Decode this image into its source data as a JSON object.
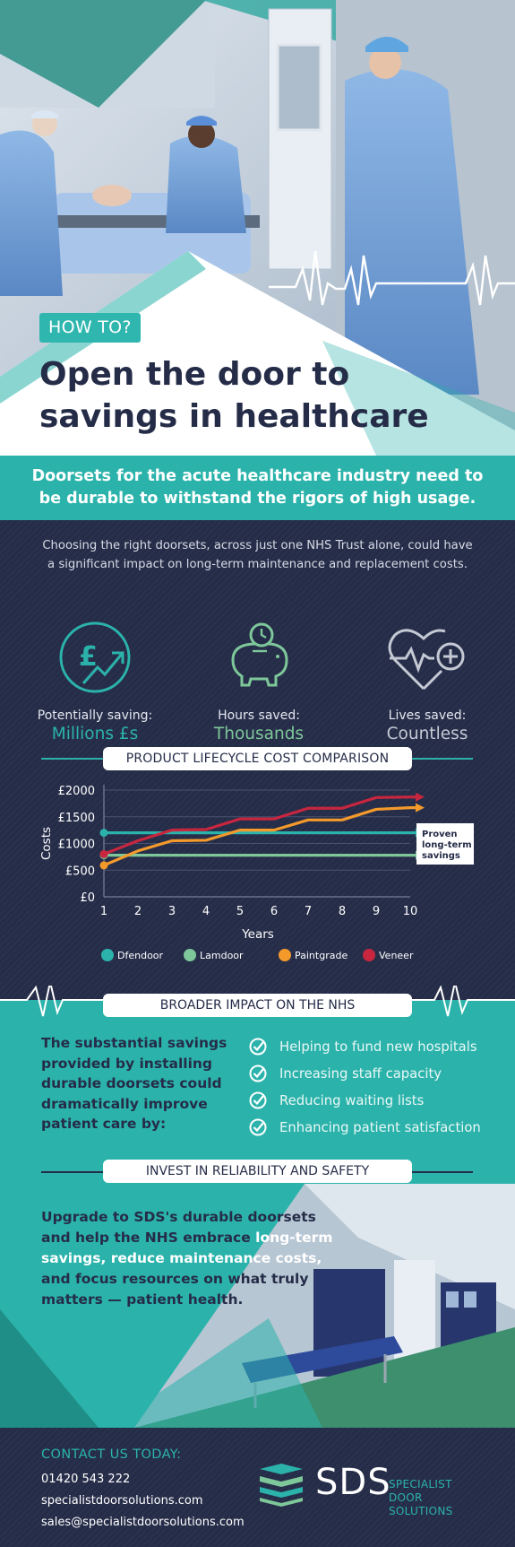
{
  "hero": {
    "tag": "HOW TO?",
    "title_line1": "Open the door to",
    "title_line2": "savings in healthcare"
  },
  "banner": {
    "line1": "Doorsets for the acute healthcare industry need to",
    "line2": "be durable to withstand the rigors of high usage."
  },
  "intro": {
    "line1": "Choosing the right doorsets, across just one NHS Trust alone, could have",
    "line2": "a significant impact on long-term maintenance and replacement costs."
  },
  "stats": [
    {
      "icon": "pound-growth-icon",
      "label": "Potentially saving:",
      "value": "Millions £s",
      "color": "#2bb3ab"
    },
    {
      "icon": "piggy-bank-clock-icon",
      "label": "Hours saved:",
      "value": "Thousands",
      "color": "#7ec79a"
    },
    {
      "icon": "heart-pulse-plus-icon",
      "label": "Lives saved:",
      "value": "Countless",
      "color": "#c4c9d4"
    }
  ],
  "chart_section_title": "PRODUCT LIFECYCLE COST COMPARISON",
  "chart_data": {
    "type": "line",
    "title": "PRODUCT LIFECYCLE COST COMPARISON",
    "xlabel": "Years",
    "ylabel": "Costs",
    "x": [
      1,
      2,
      3,
      4,
      5,
      6,
      7,
      8,
      9,
      10
    ],
    "y_ticks": [
      "£0",
      "£500",
      "£1000",
      "£1500",
      "£2000"
    ],
    "ylim": [
      0,
      2000
    ],
    "grid": true,
    "legend_position": "bottom",
    "annotation": "Proven long-term savings",
    "series": [
      {
        "name": "Dfendoor",
        "color": "#2bb3ab",
        "values": [
          1200,
          1200,
          1200,
          1200,
          1200,
          1200,
          1200,
          1200,
          1200,
          1200
        ]
      },
      {
        "name": "Lamdoor",
        "color": "#7ec79a",
        "values": [
          780,
          780,
          780,
          780,
          780,
          780,
          780,
          780,
          780,
          780
        ]
      },
      {
        "name": "Paintgrade",
        "color": "#f39a2b",
        "values": [
          590,
          860,
          1050,
          1060,
          1250,
          1250,
          1440,
          1440,
          1640,
          1670
        ]
      },
      {
        "name": "Veneer",
        "color": "#c8263e",
        "values": [
          800,
          1050,
          1250,
          1260,
          1460,
          1460,
          1660,
          1660,
          1860,
          1870
        ]
      }
    ]
  },
  "impact": {
    "title": "BROADER IMPACT ON THE NHS",
    "text": "The substantial savings provided by installing durable doorsets could dramatically improve patient care by:",
    "items": [
      "Helping to fund new hospitals",
      "Increasing staff capacity",
      "Reducing waiting lists",
      "Enhancing patient satisfaction"
    ]
  },
  "invest": {
    "title": "INVEST IN RELIABILITY AND SAFETY",
    "t1": "Upgrade to SDS's durable doorsets and help the NHS embrace ",
    "t2": "long-term savings, reduce maintenance costs,",
    "t3": " and focus resources on what truly matters — patient health."
  },
  "contact": {
    "heading": "CONTACT US TODAY:",
    "phone": "01420 543 222",
    "website": "specialistdoorsolutions.com",
    "email": "sales@specialistdoorsolutions.com"
  },
  "logo": {
    "name": "SDS",
    "sub_line1": "SPECIALIST DOOR",
    "sub_line2": "SOLUTIONS"
  }
}
